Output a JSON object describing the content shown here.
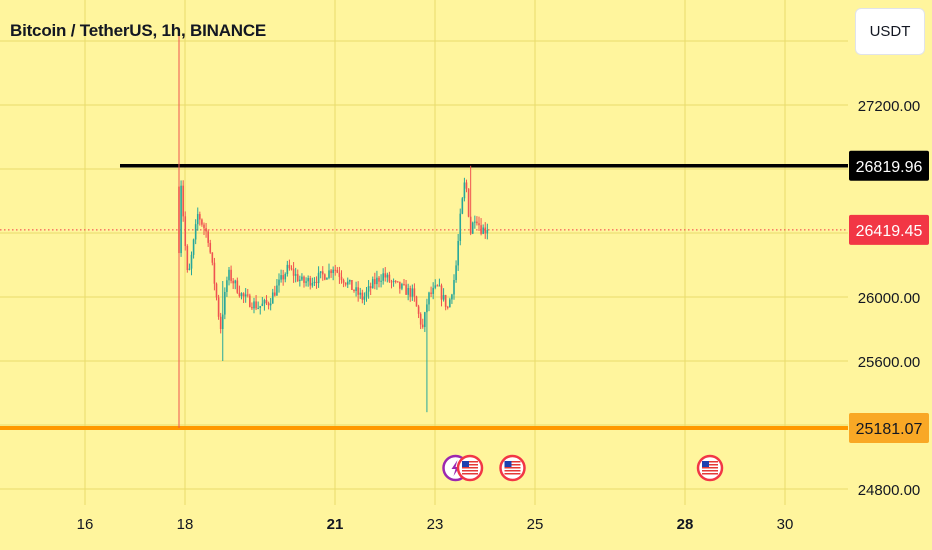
{
  "header": {
    "title": "Bitcoin / TetherUS, 1h, BINANCE",
    "currency_label": "USDT"
  },
  "colors": {
    "background": "#fff59d",
    "grid": "#e9dc6b",
    "up": "#26a69a",
    "down": "#ef5350",
    "resistance_line": "#000000",
    "support_line": "#ff9800",
    "last_price_tag": "#f23645",
    "support_tag": "#f9a825"
  },
  "chart_data": {
    "type": "candlestick",
    "x_tick_labels": [
      "16",
      "18",
      "21",
      "23",
      "25",
      "28",
      "30"
    ],
    "bold_x_tick_labels": [
      "21",
      "28"
    ],
    "y_tick_labels": [
      24800,
      25600,
      26000,
      27200
    ],
    "ylim": [
      24650,
      27600
    ],
    "grid": true,
    "horizontal_lines": [
      {
        "price": 26819.96,
        "label": "26819.96",
        "color": "#000000",
        "start_day": 16.7
      },
      {
        "price": 25181.07,
        "label": "25181.07",
        "color": "#ff9800",
        "start_day": 14
      }
    ],
    "last_price": {
      "price": 26419.45,
      "label": "26419.45"
    },
    "event_markers": [
      {
        "day": 23.65,
        "icon": "lightning-icon"
      },
      {
        "day": 23.7,
        "icon": "us-flag-icon"
      },
      {
        "day": 24.55,
        "icon": "us-flag-icon"
      },
      {
        "day": 28.5,
        "icon": "us-flag-icon"
      }
    ],
    "path": [
      [
        17.85,
        27800
      ],
      [
        17.9,
        25950
      ],
      [
        17.95,
        26780
      ],
      [
        18.05,
        26300
      ],
      [
        18.1,
        26100
      ],
      [
        18.3,
        26520
      ],
      [
        18.5,
        26380
      ],
      [
        18.65,
        26050
      ],
      [
        18.75,
        25800
      ],
      [
        18.9,
        26150
      ],
      [
        19.2,
        26000
      ],
      [
        19.5,
        25940
      ],
      [
        19.7,
        25960
      ],
      [
        19.9,
        26070
      ],
      [
        20.1,
        26180
      ],
      [
        20.4,
        26090
      ],
      [
        20.7,
        26120
      ],
      [
        20.9,
        26150
      ],
      [
        21.0,
        26190
      ],
      [
        21.2,
        26120
      ],
      [
        21.4,
        26050
      ],
      [
        21.6,
        25990
      ],
      [
        21.8,
        26080
      ],
      [
        22.0,
        26140
      ],
      [
        22.2,
        26080
      ],
      [
        22.4,
        26050
      ],
      [
        22.6,
        26020
      ],
      [
        22.7,
        25900
      ],
      [
        22.8,
        25800
      ],
      [
        22.9,
        26000
      ],
      [
        23.1,
        26060
      ],
      [
        23.3,
        25930
      ],
      [
        23.45,
        26150
      ],
      [
        23.55,
        26500
      ],
      [
        23.65,
        26750
      ],
      [
        23.75,
        26400
      ],
      [
        23.85,
        26520
      ],
      [
        23.95,
        26430
      ],
      [
        24.05,
        26419.45
      ]
    ],
    "wick_extremes": [
      {
        "day": 17.9,
        "high": 27650,
        "low": 25181.07
      },
      {
        "day": 18.75,
        "high": 26100,
        "low": 25600
      },
      {
        "day": 22.85,
        "high": 25850,
        "low": 25280
      },
      {
        "day": 23.7,
        "high": 26819.96,
        "low": 26450
      }
    ]
  }
}
